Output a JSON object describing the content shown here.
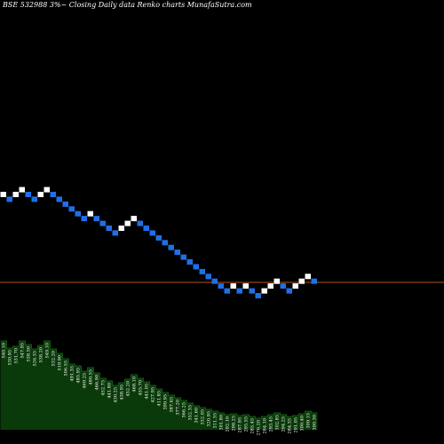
{
  "title": "BSE 532988  3%~  Closing Daily data  Renko  charts MunafaSutra.com",
  "chart_data": {
    "type": "renko",
    "title": "BSE 532988  3%~  Closing Daily data  Renko  charts MunafaSutra.com",
    "brick_size_label": "3%",
    "colors": {
      "up_brick": "#ffffff",
      "down_brick": "#1f6fe8",
      "reference_line": "#b5561c",
      "volume_fill": "#0a3a0a",
      "volume_top": "#0f5a0f",
      "background": "#000000"
    },
    "bricks": [
      {
        "level": 8,
        "dir": "up"
      },
      {
        "level": 7,
        "dir": "down"
      },
      {
        "level": 8,
        "dir": "up"
      },
      {
        "level": 9,
        "dir": "up"
      },
      {
        "level": 8,
        "dir": "down"
      },
      {
        "level": 7,
        "dir": "down"
      },
      {
        "level": 8,
        "dir": "up"
      },
      {
        "level": 9,
        "dir": "up"
      },
      {
        "level": 8,
        "dir": "down"
      },
      {
        "level": 7,
        "dir": "down"
      },
      {
        "level": 6,
        "dir": "down"
      },
      {
        "level": 5,
        "dir": "down"
      },
      {
        "level": 4,
        "dir": "down"
      },
      {
        "level": 3,
        "dir": "down"
      },
      {
        "level": 4,
        "dir": "up"
      },
      {
        "level": 3,
        "dir": "down"
      },
      {
        "level": 2,
        "dir": "down"
      },
      {
        "level": 1,
        "dir": "down"
      },
      {
        "level": 0,
        "dir": "down"
      },
      {
        "level": 1,
        "dir": "up"
      },
      {
        "level": 2,
        "dir": "up"
      },
      {
        "level": 3,
        "dir": "up"
      },
      {
        "level": 2,
        "dir": "down"
      },
      {
        "level": 1,
        "dir": "down"
      },
      {
        "level": 0,
        "dir": "down"
      },
      {
        "level": -1,
        "dir": "down"
      },
      {
        "level": -2,
        "dir": "down"
      },
      {
        "level": -3,
        "dir": "down"
      },
      {
        "level": -4,
        "dir": "down"
      },
      {
        "level": -5,
        "dir": "down"
      },
      {
        "level": -6,
        "dir": "down"
      },
      {
        "level": -7,
        "dir": "down"
      },
      {
        "level": -8,
        "dir": "down"
      },
      {
        "level": -9,
        "dir": "down"
      },
      {
        "level": -10,
        "dir": "down"
      },
      {
        "level": -11,
        "dir": "down"
      },
      {
        "level": -12,
        "dir": "down"
      },
      {
        "level": -11,
        "dir": "up"
      },
      {
        "level": -12,
        "dir": "down"
      },
      {
        "level": -11,
        "dir": "up"
      },
      {
        "level": -12,
        "dir": "down"
      },
      {
        "level": -13,
        "dir": "down"
      },
      {
        "level": -12,
        "dir": "up"
      },
      {
        "level": -11,
        "dir": "up"
      },
      {
        "level": -10,
        "dir": "up"
      },
      {
        "level": -11,
        "dir": "down"
      },
      {
        "level": -12,
        "dir": "down"
      },
      {
        "level": -11,
        "dir": "up"
      },
      {
        "level": -10,
        "dir": "up"
      },
      {
        "level": -9,
        "dir": "up"
      },
      {
        "level": -10,
        "dir": "down"
      }
    ],
    "volume": [
      {
        "label": "540.10",
        "value": 100
      },
      {
        "label": "530.95",
        "value": 92
      },
      {
        "label": "531.70",
        "value": 94
      },
      {
        "label": "547.95",
        "value": 100
      },
      {
        "label": "538.50",
        "value": 96
      },
      {
        "label": "526.35",
        "value": 91
      },
      {
        "label": "538.20",
        "value": 95
      },
      {
        "label": "549.10",
        "value": 100
      },
      {
        "label": "532.20",
        "value": 91
      },
      {
        "label": "519.90",
        "value": 86
      },
      {
        "label": "506.55",
        "value": 80
      },
      {
        "label": "491.35",
        "value": 74
      },
      {
        "label": "485.95",
        "value": 72
      },
      {
        "label": "469.25",
        "value": 66
      },
      {
        "label": "480.55",
        "value": 70
      },
      {
        "label": "466.90",
        "value": 64
      },
      {
        "label": "452.75",
        "value": 58
      },
      {
        "label": "441.80",
        "value": 55
      },
      {
        "label": "430.25",
        "value": 50
      },
      {
        "label": "438.95",
        "value": 53
      },
      {
        "label": "452.20",
        "value": 57
      },
      {
        "label": "468.10",
        "value": 62
      },
      {
        "label": "455.70",
        "value": 58
      },
      {
        "label": "441.05",
        "value": 54
      },
      {
        "label": "427.95",
        "value": 50
      },
      {
        "label": "411.85",
        "value": 46
      },
      {
        "label": "399.95",
        "value": 42
      },
      {
        "label": "387.65",
        "value": 39
      },
      {
        "label": "377.20",
        "value": 36
      },
      {
        "label": "366.25",
        "value": 33
      },
      {
        "label": "352.35",
        "value": 30
      },
      {
        "label": "341.60",
        "value": 27
      },
      {
        "label": "332.05",
        "value": 25
      },
      {
        "label": "320.95",
        "value": 23
      },
      {
        "label": "311.35",
        "value": 21
      },
      {
        "label": "301.80",
        "value": 19
      },
      {
        "label": "292.10",
        "value": 17
      },
      {
        "label": "298.25",
        "value": 18
      },
      {
        "label": "287.95",
        "value": 16
      },
      {
        "label": "295.55",
        "value": 17
      },
      {
        "label": "285.45",
        "value": 15
      },
      {
        "label": "276.20",
        "value": 13
      },
      {
        "label": "284.10",
        "value": 15
      },
      {
        "label": "293.45",
        "value": 17
      },
      {
        "label": "302.85",
        "value": 19
      },
      {
        "label": "294.25",
        "value": 17
      },
      {
        "label": "284.35",
        "value": 15
      },
      {
        "label": "291.05",
        "value": 16
      },
      {
        "label": "300.40",
        "value": 18
      },
      {
        "label": "309.15",
        "value": 21
      },
      {
        "label": "300.30",
        "value": 19
      }
    ]
  }
}
